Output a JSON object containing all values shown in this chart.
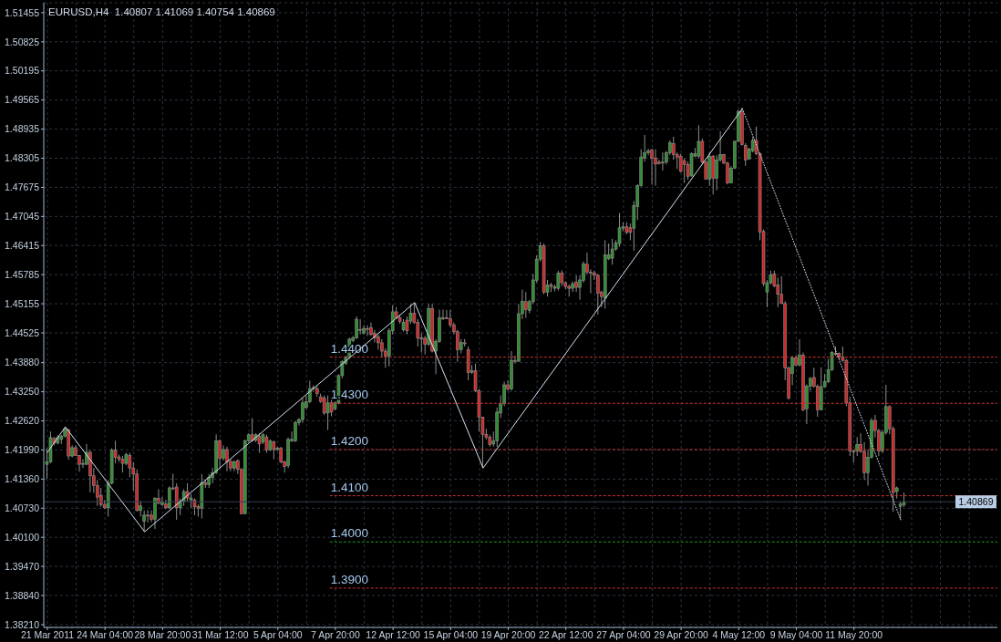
{
  "chart_data": {
    "type": "candlestick",
    "title": "EURUSD,H4  1.40807 1.41069 1.40754 1.40869",
    "categories": [
      "21 Mar 2011",
      null,
      null,
      null,
      null,
      null,
      null,
      null,
      null,
      null,
      null,
      null,
      null,
      null,
      null,
      null,
      "24 Mar 04:00",
      null,
      null,
      null,
      null,
      null,
      null,
      null,
      null,
      null,
      null,
      null,
      null,
      null,
      null,
      null,
      "28 Mar 20:00",
      null,
      null,
      null,
      null,
      null,
      null,
      null,
      null,
      null,
      null,
      null,
      null,
      null,
      null,
      null,
      "31 Mar 12:00",
      null,
      null,
      null,
      null,
      null,
      null,
      null,
      null,
      null,
      null,
      null,
      null,
      null,
      null,
      null,
      "5 Apr 04:00",
      null,
      null,
      null,
      null,
      null,
      null,
      null,
      null,
      null,
      null,
      null,
      null,
      null,
      null,
      null,
      "7 Apr 20:00",
      null,
      null,
      null,
      null,
      null,
      null,
      null,
      null,
      null,
      null,
      null,
      null,
      null,
      null,
      null,
      "12 Apr 12:00",
      null,
      null,
      null,
      null,
      null,
      null,
      null,
      null,
      null,
      null,
      null,
      null,
      null,
      null,
      null,
      "15 Apr 04:00",
      null,
      null,
      null,
      null,
      null,
      null,
      null,
      null,
      null,
      null,
      null,
      null,
      null,
      null,
      null,
      "19 Apr 20:00",
      null,
      null,
      null,
      null,
      null,
      null,
      null,
      null,
      null,
      null,
      null,
      null,
      null,
      null,
      null,
      "22 Apr 12:00",
      null,
      null,
      null,
      null,
      null,
      null,
      null,
      null,
      null,
      null,
      null,
      null,
      null,
      null,
      null,
      "27 Apr 04:00",
      null,
      null,
      null,
      null,
      null,
      null,
      null,
      null,
      null,
      null,
      null,
      null,
      null,
      null,
      null,
      "29 Apr 20:00",
      null,
      null,
      null,
      null,
      null,
      null,
      null,
      null,
      null,
      null,
      null,
      null,
      null,
      null,
      null,
      "4 May 12:00",
      null,
      null,
      null,
      null,
      null,
      null,
      null,
      null,
      null,
      null,
      null,
      null,
      null,
      null,
      null,
      "9 May 04:00",
      null,
      null,
      null,
      null,
      null,
      null,
      null,
      null,
      null,
      null,
      null,
      null,
      null,
      null,
      null,
      "11 May 20:00",
      null,
      null,
      null,
      null,
      null,
      null,
      null,
      null,
      null,
      null,
      null,
      null,
      null,
      null
    ],
    "ohlc": [
      [
        1.4168,
        1.4203,
        1.4137,
        1.4173
      ],
      [
        1.4173,
        1.4239,
        1.417,
        1.4226
      ],
      [
        1.4224,
        1.4227,
        1.4209,
        1.4214
      ],
      [
        1.4214,
        1.4231,
        1.4211,
        1.4226
      ],
      [
        1.4222,
        1.4232,
        1.4212,
        1.4229
      ],
      [
        1.4229,
        1.4249,
        1.4226,
        1.4244
      ],
      [
        1.4242,
        1.4245,
        1.4178,
        1.4186
      ],
      [
        1.4186,
        1.4209,
        1.4183,
        1.4204
      ],
      [
        1.4204,
        1.4209,
        1.4186,
        1.4187
      ],
      [
        1.4187,
        1.4188,
        1.4152,
        1.4168
      ],
      [
        1.4168,
        1.4179,
        1.416,
        1.417
      ],
      [
        1.4168,
        1.4212,
        1.4166,
        1.4194
      ],
      [
        1.4194,
        1.4199,
        1.4107,
        1.4143
      ],
      [
        1.4143,
        1.416,
        1.4106,
        1.4122
      ],
      [
        1.4122,
        1.4134,
        1.4078,
        1.4097
      ],
      [
        1.4101,
        1.4117,
        1.4076,
        1.4081
      ],
      [
        1.4081,
        1.4091,
        1.4071,
        1.4074
      ],
      [
        1.4074,
        1.4134,
        1.4055,
        1.4127
      ],
      [
        1.4127,
        1.4203,
        1.4125,
        1.4199
      ],
      [
        1.4199,
        1.4219,
        1.417,
        1.4183
      ],
      [
        1.4184,
        1.4189,
        1.4173,
        1.4179
      ],
      [
        1.4179,
        1.4186,
        1.415,
        1.417
      ],
      [
        1.417,
        1.4193,
        1.4166,
        1.4189
      ],
      [
        1.4187,
        1.4193,
        1.414,
        1.416
      ],
      [
        1.416,
        1.4173,
        1.4111,
        1.4147
      ],
      [
        1.4147,
        1.4157,
        1.4066,
        1.4068
      ],
      [
        1.4068,
        1.4089,
        1.4055,
        1.4078
      ],
      [
        1.4045,
        1.4068,
        1.4022,
        1.4058
      ],
      [
        1.4058,
        1.4069,
        1.4042,
        1.4056
      ],
      [
        1.4058,
        1.4068,
        1.4043,
        1.4049
      ],
      [
        1.4049,
        1.4097,
        1.4028,
        1.4094
      ],
      [
        1.4094,
        1.4114,
        1.4081,
        1.4084
      ],
      [
        1.4081,
        1.4097,
        1.4078,
        1.4086
      ],
      [
        1.4082,
        1.4091,
        1.4071,
        1.4074
      ],
      [
        1.4074,
        1.412,
        1.4071,
        1.4117
      ],
      [
        1.4117,
        1.4148,
        1.4112,
        1.4115
      ],
      [
        1.4119,
        1.4127,
        1.4048,
        1.4074
      ],
      [
        1.4074,
        1.4094,
        1.4058,
        1.4088
      ],
      [
        1.4088,
        1.4114,
        1.4078,
        1.4109
      ],
      [
        1.4109,
        1.4127,
        1.4088,
        1.4095
      ],
      [
        1.4091,
        1.4104,
        1.4074,
        1.4095
      ],
      [
        1.4091,
        1.4094,
        1.4058,
        1.4076
      ],
      [
        1.4077,
        1.4081,
        1.4055,
        1.4073
      ],
      [
        1.4073,
        1.4147,
        1.4051,
        1.4128
      ],
      [
        1.4128,
        1.4134,
        1.4117,
        1.4124
      ],
      [
        1.4124,
        1.4147,
        1.4117,
        1.414
      ],
      [
        1.4139,
        1.416,
        1.4127,
        1.415
      ],
      [
        1.415,
        1.4233,
        1.4147,
        1.4219
      ],
      [
        1.4219,
        1.4222,
        1.416,
        1.4181
      ],
      [
        1.4181,
        1.4209,
        1.4176,
        1.42
      ],
      [
        1.42,
        1.4206,
        1.4153,
        1.4173
      ],
      [
        1.4174,
        1.4179,
        1.4153,
        1.416
      ],
      [
        1.416,
        1.4176,
        1.4153,
        1.4174
      ],
      [
        1.4176,
        1.4179,
        1.4147,
        1.4157
      ],
      [
        1.4157,
        1.416,
        1.406,
        1.4061
      ],
      [
        1.4061,
        1.4222,
        1.406,
        1.4219
      ],
      [
        1.4219,
        1.4235,
        1.4216,
        1.4232
      ],
      [
        1.4232,
        1.4268,
        1.4217,
        1.4219
      ],
      [
        1.422,
        1.4235,
        1.4216,
        1.4232
      ],
      [
        1.4229,
        1.4235,
        1.4193,
        1.4212
      ],
      [
        1.4216,
        1.4235,
        1.4212,
        1.4232
      ],
      [
        1.4227,
        1.4232,
        1.4193,
        1.4199
      ],
      [
        1.4199,
        1.4222,
        1.4197,
        1.4219
      ],
      [
        1.4217,
        1.4219,
        1.4179,
        1.42
      ],
      [
        1.42,
        1.4206,
        1.4197,
        1.4203
      ],
      [
        1.4203,
        1.4206,
        1.417,
        1.4173
      ],
      [
        1.4173,
        1.4176,
        1.415,
        1.4163
      ],
      [
        1.4165,
        1.4226,
        1.416,
        1.4222
      ],
      [
        1.4219,
        1.4239,
        1.4216,
        1.4222
      ],
      [
        1.4219,
        1.4262,
        1.4216,
        1.4258
      ],
      [
        1.4258,
        1.4268,
        1.4252,
        1.4265
      ],
      [
        1.4265,
        1.4311,
        1.4258,
        1.4301
      ],
      [
        1.4291,
        1.4317,
        1.4288,
        1.4304
      ],
      [
        1.4304,
        1.4349,
        1.43,
        1.4332
      ],
      [
        1.4332,
        1.4339,
        1.4327,
        1.4334
      ],
      [
        1.4332,
        1.4337,
        1.4314,
        1.4321
      ],
      [
        1.4314,
        1.4321,
        1.4301,
        1.4304
      ],
      [
        1.4311,
        1.4317,
        1.4275,
        1.4279
      ],
      [
        1.4279,
        1.4317,
        1.4242,
        1.4301
      ],
      [
        1.4301,
        1.4308,
        1.4272,
        1.4281
      ],
      [
        1.4288,
        1.4304,
        1.4285,
        1.4301
      ],
      [
        1.4301,
        1.4363,
        1.4298,
        1.436
      ],
      [
        1.436,
        1.4393,
        1.4354,
        1.439
      ],
      [
        1.4386,
        1.4403,
        1.4383,
        1.44
      ],
      [
        1.44,
        1.4442,
        1.4396,
        1.4439
      ],
      [
        1.4436,
        1.4446,
        1.4432,
        1.4442
      ],
      [
        1.4442,
        1.4488,
        1.4439,
        1.4482
      ],
      [
        1.446,
        1.4482,
        1.4449,
        1.4458
      ],
      [
        1.4452,
        1.4469,
        1.4449,
        1.4462
      ],
      [
        1.4462,
        1.4469,
        1.4446,
        1.4461
      ],
      [
        1.4464,
        1.4475,
        1.4446,
        1.4449
      ],
      [
        1.4452,
        1.4459,
        1.4432,
        1.4442
      ],
      [
        1.4444,
        1.4449,
        1.4416,
        1.4431
      ],
      [
        1.4431,
        1.4439,
        1.44,
        1.4413
      ],
      [
        1.4413,
        1.4419,
        1.4377,
        1.4402
      ],
      [
        1.4402,
        1.4462,
        1.438,
        1.4457
      ],
      [
        1.4457,
        1.4512,
        1.4449,
        1.4498
      ],
      [
        1.4498,
        1.4508,
        1.4482,
        1.4485
      ],
      [
        1.4485,
        1.4492,
        1.4472,
        1.4477
      ],
      [
        1.4459,
        1.4482,
        1.4455,
        1.4475
      ],
      [
        1.448,
        1.4488,
        1.4449,
        1.4457
      ],
      [
        1.4478,
        1.4515,
        1.4472,
        1.4495
      ],
      [
        1.4495,
        1.4518,
        1.4472,
        1.4475
      ],
      [
        1.4475,
        1.4482,
        1.4423,
        1.4441
      ],
      [
        1.4442,
        1.4452,
        1.441,
        1.4439
      ],
      [
        1.4441,
        1.4446,
        1.4406,
        1.4428
      ],
      [
        1.4428,
        1.4515,
        1.4424,
        1.4505
      ],
      [
        1.4505,
        1.4515,
        1.441,
        1.4413
      ],
      [
        1.4413,
        1.4439,
        1.4363,
        1.4434
      ],
      [
        1.4434,
        1.4503,
        1.4431,
        1.4485
      ],
      [
        1.4485,
        1.4503,
        1.448,
        1.4483
      ],
      [
        1.4485,
        1.4502,
        1.4482,
        1.4484
      ],
      [
        1.4483,
        1.4502,
        1.4465,
        1.447
      ],
      [
        1.447,
        1.4475,
        1.4449,
        1.4455
      ],
      [
        1.4455,
        1.4459,
        1.439,
        1.4416
      ],
      [
        1.4416,
        1.4439,
        1.4408,
        1.4432
      ],
      [
        1.4431,
        1.4439,
        1.4423,
        1.4429
      ],
      [
        1.4416,
        1.4423,
        1.435,
        1.4367
      ],
      [
        1.4367,
        1.4383,
        1.4364,
        1.4371
      ],
      [
        1.4371,
        1.4386,
        1.4324,
        1.4327
      ],
      [
        1.4327,
        1.4331,
        1.4239,
        1.427
      ],
      [
        1.427,
        1.4271,
        1.416,
        1.4233
      ],
      [
        1.4233,
        1.4245,
        1.4222,
        1.4227
      ],
      [
        1.4227,
        1.4232,
        1.4206,
        1.4211
      ],
      [
        1.4212,
        1.4239,
        1.4206,
        1.4219
      ],
      [
        1.4219,
        1.4291,
        1.4206,
        1.4281
      ],
      [
        1.4279,
        1.4317,
        1.4268,
        1.4299
      ],
      [
        1.4299,
        1.4347,
        1.4294,
        1.434
      ],
      [
        1.434,
        1.435,
        1.4327,
        1.4331
      ],
      [
        1.4331,
        1.4413,
        1.4327,
        1.4393
      ],
      [
        1.4393,
        1.4403,
        1.4386,
        1.4391
      ],
      [
        1.4391,
        1.4515,
        1.439,
        1.4494
      ],
      [
        1.4494,
        1.4546,
        1.4482,
        1.4521
      ],
      [
        1.452,
        1.4541,
        1.4485,
        1.4503
      ],
      [
        1.4501,
        1.4524,
        1.4495,
        1.452
      ],
      [
        1.452,
        1.458,
        1.4515,
        1.4567
      ],
      [
        1.4566,
        1.462,
        1.4561,
        1.4612
      ],
      [
        1.4612,
        1.4649,
        1.4607,
        1.4641
      ],
      [
        1.4641,
        1.4646,
        1.4536,
        1.454
      ],
      [
        1.454,
        1.4567,
        1.4531,
        1.4556
      ],
      [
        1.4556,
        1.4561,
        1.4541,
        1.4553
      ],
      [
        1.4549,
        1.4557,
        1.4542,
        1.4552
      ],
      [
        1.4549,
        1.4587,
        1.4544,
        1.4582
      ],
      [
        1.4582,
        1.4588,
        1.4554,
        1.4561
      ],
      [
        1.4561,
        1.4564,
        1.4547,
        1.4553
      ],
      [
        1.4553,
        1.4557,
        1.4531,
        1.4549
      ],
      [
        1.4549,
        1.4564,
        1.4541,
        1.4559
      ],
      [
        1.4562,
        1.4577,
        1.4541,
        1.4551
      ],
      [
        1.4551,
        1.4577,
        1.4524,
        1.4567
      ],
      [
        1.4566,
        1.4607,
        1.4561,
        1.4602
      ],
      [
        1.4601,
        1.4626,
        1.458,
        1.4584
      ],
      [
        1.4584,
        1.459,
        1.4538,
        1.4582
      ],
      [
        1.4582,
        1.4587,
        1.4567,
        1.4577
      ],
      [
        1.4577,
        1.458,
        1.4492,
        1.4538
      ],
      [
        1.454,
        1.4544,
        1.4508,
        1.4531
      ],
      [
        1.4528,
        1.4653,
        1.4505,
        1.4621
      ],
      [
        1.4613,
        1.4646,
        1.461,
        1.4621
      ],
      [
        1.4614,
        1.4656,
        1.46,
        1.4634
      ],
      [
        1.4634,
        1.4653,
        1.463,
        1.4647
      ],
      [
        1.4646,
        1.4712,
        1.4639,
        1.468
      ],
      [
        1.4679,
        1.4692,
        1.4672,
        1.4682
      ],
      [
        1.4682,
        1.4692,
        1.4666,
        1.467
      ],
      [
        1.468,
        1.4689,
        1.4653,
        1.467
      ],
      [
        1.4679,
        1.4738,
        1.463,
        1.4728
      ],
      [
        1.4726,
        1.4774,
        1.4697,
        1.4771
      ],
      [
        1.4771,
        1.485,
        1.4769,
        1.4833
      ],
      [
        1.4831,
        1.4881,
        1.4823,
        1.4842
      ],
      [
        1.4842,
        1.4851,
        1.4837,
        1.4846
      ],
      [
        1.4848,
        1.4851,
        1.4774,
        1.483
      ],
      [
        1.4831,
        1.485,
        1.4771,
        1.4818
      ],
      [
        1.4822,
        1.4827,
        1.4817,
        1.4819
      ],
      [
        1.482,
        1.4843,
        1.4804,
        1.4822
      ],
      [
        1.4822,
        1.4846,
        1.4817,
        1.4842
      ],
      [
        1.4842,
        1.4869,
        1.4837,
        1.4864
      ],
      [
        1.4862,
        1.4877,
        1.4827,
        1.4838
      ],
      [
        1.4838,
        1.4843,
        1.4807,
        1.4833
      ],
      [
        1.4835,
        1.484,
        1.48,
        1.4802
      ],
      [
        1.4825,
        1.483,
        1.4777,
        1.4817
      ],
      [
        1.4817,
        1.4823,
        1.4784,
        1.4791
      ],
      [
        1.4792,
        1.4843,
        1.4791,
        1.484
      ],
      [
        1.4835,
        1.4853,
        1.4833,
        1.484
      ],
      [
        1.4835,
        1.4902,
        1.483,
        1.4867
      ],
      [
        1.4867,
        1.4873,
        1.4817,
        1.4822
      ],
      [
        1.4822,
        1.4825,
        1.4784,
        1.4785
      ],
      [
        1.4785,
        1.4843,
        1.4771,
        1.4835
      ],
      [
        1.4835,
        1.4837,
        1.4752,
        1.4787
      ],
      [
        1.4787,
        1.4837,
        1.4761,
        1.4827
      ],
      [
        1.4827,
        1.4889,
        1.4823,
        1.4838
      ],
      [
        1.4838,
        1.484,
        1.4817,
        1.482
      ],
      [
        1.482,
        1.4823,
        1.4774,
        1.4777
      ],
      [
        1.4777,
        1.4814,
        1.4776,
        1.4809
      ],
      [
        1.4809,
        1.4869,
        1.4807,
        1.4867
      ],
      [
        1.4867,
        1.4935,
        1.4866,
        1.4932
      ],
      [
        1.4932,
        1.4938,
        1.4858,
        1.486
      ],
      [
        1.4858,
        1.4863,
        1.4814,
        1.4827
      ],
      [
        1.4829,
        1.4853,
        1.4827,
        1.485
      ],
      [
        1.4846,
        1.4876,
        1.4843,
        1.4869
      ],
      [
        1.4869,
        1.4899,
        1.4837,
        1.484
      ],
      [
        1.484,
        1.4843,
        1.4653,
        1.4671
      ],
      [
        1.4672,
        1.4676,
        1.4554,
        1.4559
      ],
      [
        1.4541,
        1.4567,
        1.4508,
        1.4561
      ],
      [
        1.4561,
        1.4587,
        1.4557,
        1.4578
      ],
      [
        1.458,
        1.4587,
        1.4551,
        1.4554
      ],
      [
        1.4556,
        1.4572,
        1.4508,
        1.4536
      ],
      [
        1.4536,
        1.4575,
        1.4515,
        1.4516
      ],
      [
        1.4516,
        1.4521,
        1.435,
        1.4377
      ],
      [
        1.4377,
        1.438,
        1.4308,
        1.4311
      ],
      [
        1.4365,
        1.4403,
        1.4339,
        1.4398
      ],
      [
        1.4398,
        1.4403,
        1.438,
        1.4383
      ],
      [
        1.4383,
        1.4439,
        1.438,
        1.4404
      ],
      [
        1.4404,
        1.441,
        1.4283,
        1.4286
      ],
      [
        1.4288,
        1.4341,
        1.4255,
        1.4337
      ],
      [
        1.4337,
        1.4357,
        1.4327,
        1.4354
      ],
      [
        1.4356,
        1.4377,
        1.4334,
        1.4337
      ],
      [
        1.4337,
        1.4341,
        1.4271,
        1.4286
      ],
      [
        1.4286,
        1.4378,
        1.4285,
        1.4336
      ],
      [
        1.4336,
        1.4364,
        1.4334,
        1.4347
      ],
      [
        1.4347,
        1.4396,
        1.4344,
        1.4373
      ],
      [
        1.4373,
        1.4413,
        1.437,
        1.441
      ],
      [
        1.4408,
        1.4423,
        1.4403,
        1.4406
      ],
      [
        1.4408,
        1.441,
        1.4396,
        1.4401
      ],
      [
        1.44,
        1.4423,
        1.439,
        1.4393
      ],
      [
        1.4393,
        1.4396,
        1.4294,
        1.4301
      ],
      [
        1.4301,
        1.4314,
        1.4186,
        1.4197
      ],
      [
        1.4197,
        1.4199,
        1.4172,
        1.4196
      ],
      [
        1.4197,
        1.4227,
        1.4186,
        1.4211
      ],
      [
        1.4211,
        1.4235,
        1.4193,
        1.4196
      ],
      [
        1.4196,
        1.4216,
        1.4134,
        1.415
      ],
      [
        1.415,
        1.4199,
        1.4122,
        1.4183
      ],
      [
        1.4183,
        1.4268,
        1.418,
        1.4263
      ],
      [
        1.4263,
        1.4275,
        1.4226,
        1.4241
      ],
      [
        1.4241,
        1.4245,
        1.4186,
        1.4197
      ],
      [
        1.4197,
        1.4242,
        1.4193,
        1.4237
      ],
      [
        1.4237,
        1.434,
        1.4232,
        1.4293
      ],
      [
        1.4293,
        1.4296,
        1.4233,
        1.4245
      ],
      [
        1.4245,
        1.425,
        1.4065,
        1.4107
      ],
      [
        1.4109,
        1.412,
        1.4094,
        1.4117
      ],
      [
        1.4077,
        1.4088,
        1.4048,
        1.4082
      ],
      [
        1.40807,
        1.41069,
        1.40754,
        1.40869
      ]
    ],
    "color": "#8e8e8e",
    "colors": [
      "#2f8f2f",
      "#2f8f2f",
      "#d02828",
      "#2f8f2f",
      "#2f8f2f",
      "#2f8f2f",
      "#d02828",
      "#2f8f2f",
      "#d02828",
      "#d02828",
      "#2f8f2f",
      "#2f8f2f",
      "#d02828",
      "#d02828",
      "#d02828",
      "#d02828",
      "#d02828",
      "#2f8f2f",
      "#2f8f2f",
      "#d02828",
      "#d02828",
      "#d02828",
      "#2f8f2f",
      "#d02828",
      "#d02828",
      "#d02828",
      "#2f8f2f",
      "#2f8f2f",
      "#d02828",
      "#d02828",
      "#2f8f2f",
      "#d02828",
      "#2f8f2f",
      "#d02828",
      "#2f8f2f",
      "#d02828",
      "#d02828",
      "#2f8f2f",
      "#2f8f2f",
      "#d02828",
      "#2f8f2f",
      "#d02828",
      "#d02828",
      "#2f8f2f",
      "#d02828",
      "#2f8f2f",
      "#2f8f2f",
      "#2f8f2f",
      "#d02828",
      "#2f8f2f",
      "#d02828",
      "#d02828",
      "#2f8f2f",
      "#d02828",
      "#d02828",
      "#2f8f2f",
      "#2f8f2f",
      "#d02828",
      "#2f8f2f",
      "#d02828",
      "#2f8f2f",
      "#d02828",
      "#2f8f2f",
      "#d02828",
      "#2f8f2f",
      "#d02828",
      "#d02828",
      "#2f8f2f",
      "#2f8f2f",
      "#2f8f2f",
      "#2f8f2f",
      "#2f8f2f",
      "#2f8f2f",
      "#2f8f2f",
      "#2f8f2f",
      "#d02828",
      "#d02828",
      "#d02828",
      "#2f8f2f",
      "#d02828",
      "#2f8f2f",
      "#2f8f2f",
      "#2f8f2f",
      "#2f8f2f",
      "#2f8f2f",
      "#2f8f2f",
      "#2f8f2f",
      "#d02828",
      "#2f8f2f",
      "#d02828",
      "#d02828",
      "#d02828",
      "#d02828",
      "#d02828",
      "#d02828",
      "#2f8f2f",
      "#2f8f2f",
      "#d02828",
      "#d02828",
      "#2f8f2f",
      "#d02828",
      "#2f8f2f",
      "#d02828",
      "#d02828",
      "#d02828",
      "#d02828",
      "#2f8f2f",
      "#d02828",
      "#2f8f2f",
      "#2f8f2f",
      "#d02828",
      "#d02828",
      "#d02828",
      "#d02828",
      "#d02828",
      "#2f8f2f",
      "#d02828",
      "#d02828",
      "#2f8f2f",
      "#d02828",
      "#d02828",
      "#d02828",
      "#d02828",
      "#d02828",
      "#2f8f2f",
      "#2f8f2f",
      "#2f8f2f",
      "#2f8f2f",
      "#d02828",
      "#2f8f2f",
      "#d02828",
      "#2f8f2f",
      "#2f8f2f",
      "#d02828",
      "#2f8f2f",
      "#2f8f2f",
      "#2f8f2f",
      "#2f8f2f",
      "#d02828",
      "#2f8f2f",
      "#d02828",
      "#2f8f2f",
      "#2f8f2f",
      "#d02828",
      "#d02828",
      "#d02828",
      "#2f8f2f",
      "#d02828",
      "#2f8f2f",
      "#2f8f2f",
      "#d02828",
      "#d02828",
      "#d02828",
      "#d02828",
      "#d02828",
      "#2f8f2f",
      "#2f8f2f",
      "#2f8f2f",
      "#2f8f2f",
      "#2f8f2f",
      "#2f8f2f",
      "#d02828",
      "#d02828",
      "#2f8f2f",
      "#2f8f2f",
      "#2f8f2f",
      "#2f8f2f",
      "#2f8f2f",
      "#d02828",
      "#d02828",
      "#d02828",
      "#2f8f2f",
      "#2f8f2f",
      "#2f8f2f",
      "#d02828",
      "#d02828",
      "#d02828",
      "#d02828",
      "#d02828",
      "#2f8f2f",
      "#2f8f2f",
      "#2f8f2f",
      "#d02828",
      "#d02828",
      "#2f8f2f",
      "#d02828",
      "#2f8f2f",
      "#2f8f2f",
      "#d02828",
      "#d02828",
      "#2f8f2f",
      "#2f8f2f",
      "#2f8f2f",
      "#d02828",
      "#d02828",
      "#2f8f2f",
      "#2f8f2f",
      "#d02828",
      "#d02828",
      "#d02828",
      "#2f8f2f",
      "#2f8f2f",
      "#d02828",
      "#d02828",
      "#d02828",
      "#d02828",
      "#d02828",
      "#2f8f2f",
      "#d02828",
      "#2f8f2f",
      "#d02828",
      "#2f8f2f",
      "#2f8f2f",
      "#d02828",
      "#d02828",
      "#2f8f2f",
      "#2f8f2f",
      "#2f8f2f",
      "#2f8f2f",
      "#d02828",
      "#d02828",
      "#d02828",
      "#d02828",
      "#d02828",
      "#d02828",
      "#2f8f2f",
      "#d02828",
      "#d02828",
      "#2f8f2f",
      "#2f8f2f",
      "#d02828",
      "#d02828",
      "#2f8f2f",
      "#2f8f2f",
      "#d02828",
      "#d02828",
      "#2f8f2f",
      "#2f8f2f",
      "#2f8f2f"
    ],
    "series": [
      {
        "type": "line",
        "color": "#d6e2f2",
        "line_style": "solid",
        "marker": "none",
        "values": [
          1.4194,
          null,
          null,
          null,
          null,
          1.4249,
          null,
          null,
          null,
          null,
          null,
          null,
          null,
          null,
          null,
          null,
          null,
          null,
          null,
          null,
          null,
          null,
          null,
          null,
          null,
          null,
          null,
          1.4022,
          null,
          null,
          null,
          null,
          null,
          null,
          null,
          null,
          null,
          null,
          null,
          null,
          null,
          null,
          null,
          null,
          null,
          null,
          null,
          null,
          null,
          null,
          null,
          null,
          null,
          null,
          null,
          null,
          null,
          null,
          null,
          null,
          null,
          null,
          null,
          null,
          null,
          null,
          null,
          null,
          null,
          null,
          null,
          null,
          null,
          null,
          null,
          null,
          null,
          null,
          null,
          null,
          null,
          null,
          null,
          null,
          null,
          null,
          null,
          null,
          null,
          null,
          null,
          null,
          null,
          null,
          null,
          null,
          null,
          null,
          null,
          null,
          null,
          null,
          1.4518,
          null,
          null,
          null,
          null,
          null,
          null,
          null,
          null,
          null,
          null,
          null,
          null,
          null,
          null,
          null,
          null,
          null,
          null,
          1.416,
          null,
          null,
          null,
          null,
          null,
          null,
          null,
          null,
          null,
          null,
          null,
          null,
          null,
          null,
          null,
          null,
          null,
          null,
          null,
          null,
          null,
          null,
          null,
          null,
          null,
          null,
          null,
          null,
          null,
          null,
          null,
          null,
          null,
          null,
          null,
          null,
          null,
          null,
          null,
          null,
          null,
          null,
          null,
          null,
          null,
          null,
          null,
          null,
          null,
          null,
          null,
          null,
          null,
          null,
          null,
          null,
          null,
          null,
          null,
          null,
          null,
          null,
          null,
          null,
          null,
          null,
          null,
          null,
          null,
          null,
          null,
          1.4938,
          null,
          null,
          null,
          null,
          null,
          null,
          null,
          null,
          null,
          null,
          null,
          null,
          null,
          null,
          null,
          null,
          null,
          null,
          null,
          null,
          null,
          null,
          null,
          null,
          null,
          null,
          null,
          null,
          null,
          null,
          null,
          null,
          null,
          null,
          null,
          null,
          null,
          null,
          null,
          null,
          null,
          null,
          null,
          null,
          null
        ]
      },
      {
        "type": "line",
        "color": "#d6e2f2",
        "line_style": "dotted",
        "marker": "none",
        "values": [
          null,
          null,
          null,
          null,
          null,
          null,
          null,
          null,
          null,
          null,
          null,
          null,
          null,
          null,
          null,
          null,
          null,
          null,
          null,
          null,
          null,
          null,
          null,
          null,
          null,
          null,
          null,
          null,
          null,
          null,
          null,
          null,
          null,
          null,
          null,
          null,
          null,
          null,
          null,
          null,
          null,
          null,
          null,
          null,
          null,
          null,
          null,
          null,
          null,
          null,
          null,
          null,
          null,
          null,
          null,
          null,
          null,
          null,
          null,
          null,
          null,
          null,
          null,
          null,
          null,
          null,
          null,
          null,
          null,
          null,
          null,
          null,
          null,
          null,
          null,
          null,
          null,
          null,
          null,
          null,
          null,
          null,
          null,
          null,
          null,
          null,
          null,
          null,
          null,
          null,
          null,
          null,
          null,
          null,
          null,
          null,
          null,
          null,
          null,
          null,
          null,
          null,
          null,
          null,
          null,
          null,
          null,
          null,
          null,
          null,
          null,
          null,
          null,
          null,
          null,
          null,
          null,
          null,
          null,
          null,
          null,
          null,
          null,
          null,
          null,
          null,
          null,
          null,
          null,
          null,
          null,
          null,
          null,
          null,
          null,
          null,
          null,
          null,
          null,
          null,
          null,
          null,
          null,
          null,
          null,
          null,
          null,
          null,
          null,
          null,
          null,
          null,
          null,
          null,
          null,
          null,
          null,
          null,
          null,
          null,
          null,
          null,
          null,
          null,
          null,
          null,
          null,
          null,
          null,
          null,
          null,
          null,
          null,
          null,
          null,
          null,
          null,
          null,
          null,
          null,
          null,
          null,
          null,
          null,
          null,
          null,
          null,
          null,
          null,
          null,
          null,
          null,
          null,
          1.4938,
          null,
          null,
          null,
          null,
          null,
          null,
          null,
          null,
          null,
          null,
          null,
          null,
          null,
          null,
          null,
          null,
          null,
          null,
          null,
          null,
          null,
          null,
          null,
          null,
          null,
          null,
          null,
          null,
          null,
          null,
          null,
          null,
          null,
          null,
          null,
          null,
          null,
          null,
          null,
          null,
          null,
          null,
          null,
          1.4048,
          null
        ]
      }
    ],
    "ylim": [
      1.3815,
      1.5167
    ],
    "yticks": [
      {
        "value": 1.51455,
        "label": "1.51455"
      },
      {
        "value": 1.50825,
        "label": "1.50825"
      },
      {
        "value": 1.50195,
        "label": "1.50195"
      },
      {
        "value": 1.49565,
        "label": "1.49565"
      },
      {
        "value": 1.48935,
        "label": "1.48935"
      },
      {
        "value": 1.48305,
        "label": "1.48305"
      },
      {
        "value": 1.47675,
        "label": "1.47675"
      },
      {
        "value": 1.47045,
        "label": "1.47045"
      },
      {
        "value": 1.46415,
        "label": "1.46415"
      },
      {
        "value": 1.45785,
        "label": "1.45785"
      },
      {
        "value": 1.45155,
        "label": "1.45155"
      },
      {
        "value": 1.44525,
        "label": "1.44525"
      },
      {
        "value": 1.4388,
        "label": "1.43880"
      },
      {
        "value": 1.4325,
        "label": "1.43250"
      },
      {
        "value": 1.4262,
        "label": "1.42620"
      },
      {
        "value": 1.4199,
        "label": "1.41990"
      },
      {
        "value": 1.4136,
        "label": "1.41360"
      },
      {
        "value": 1.4073,
        "label": "1.40730"
      },
      {
        "value": 1.401,
        "label": "1.40100"
      },
      {
        "value": 1.3947,
        "label": "1.39470"
      },
      {
        "value": 1.3884,
        "label": "1.38840"
      },
      {
        "value": 1.3821,
        "label": "1.38210"
      }
    ],
    "grid": true,
    "ref_lines": [
      {
        "axis": "y",
        "value": 1.44,
        "label": "1.4400",
        "color": "#c83232",
        "line_style": "dashed"
      },
      {
        "axis": "y",
        "value": 1.43,
        "label": "1.4300",
        "color": "#c83232",
        "line_style": "dashed"
      },
      {
        "axis": "y",
        "value": 1.42,
        "label": "1.4200",
        "color": "#c83232",
        "line_style": "dashed"
      },
      {
        "axis": "y",
        "value": 1.41,
        "label": "1.4100",
        "color": "#c83232",
        "line_style": "dashed"
      },
      {
        "axis": "y",
        "value": 1.4,
        "label": "1.4000",
        "color": "#1e9a1e",
        "line_style": "dashed"
      },
      {
        "axis": "y",
        "value": 1.39,
        "label": "1.3900",
        "color": "#c83232",
        "line_style": "dashed"
      },
      {
        "axis": "y",
        "value": 1.40869,
        "label": "1.40869",
        "color": "#343e54",
        "line_style": "solid"
      }
    ]
  }
}
